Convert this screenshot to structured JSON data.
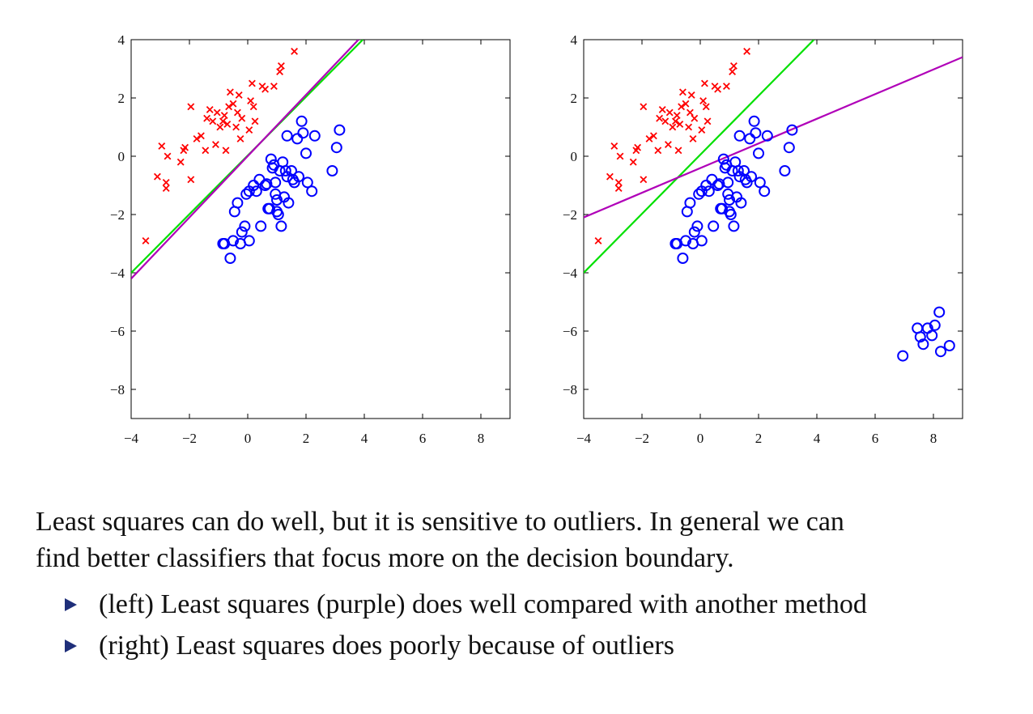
{
  "chart_data": [
    {
      "type": "scatter",
      "panel": "left",
      "xlim": [
        -4,
        9
      ],
      "ylim": [
        -9,
        4
      ],
      "xticks": [
        -4,
        -2,
        0,
        2,
        4,
        6,
        8
      ],
      "yticks": [
        -8,
        -6,
        -4,
        -2,
        0,
        2,
        4
      ],
      "xtick_labels": [
        "−4",
        "−2",
        "0",
        "2",
        "4",
        "6",
        "8"
      ],
      "ytick_labels": [
        "−8",
        "−6",
        "−4",
        "−2",
        "0",
        "2",
        "4"
      ],
      "grid": false,
      "series": [
        {
          "marker": "x",
          "color": "#ff0000",
          "points": [
            [
              -3.5,
              -2.9
            ],
            [
              -3.1,
              -0.7
            ],
            [
              -2.8,
              -0.9
            ],
            [
              -2.8,
              -1.1
            ],
            [
              -2.95,
              0.35
            ],
            [
              -2.75,
              0.0
            ],
            [
              -2.3,
              -0.2
            ],
            [
              -2.2,
              0.2
            ],
            [
              -2.15,
              0.3
            ],
            [
              -1.95,
              -0.8
            ],
            [
              -1.95,
              1.7
            ],
            [
              -1.75,
              0.6
            ],
            [
              -1.6,
              0.7
            ],
            [
              -1.45,
              0.2
            ],
            [
              -1.4,
              1.3
            ],
            [
              -1.3,
              1.6
            ],
            [
              -1.2,
              1.2
            ],
            [
              -1.1,
              0.4
            ],
            [
              -1.05,
              1.5
            ],
            [
              -0.95,
              1.0
            ],
            [
              -0.85,
              1.2
            ],
            [
              -0.8,
              1.4
            ],
            [
              -0.75,
              0.2
            ],
            [
              -0.7,
              1.1
            ],
            [
              -0.65,
              1.7
            ],
            [
              -0.6,
              2.2
            ],
            [
              -0.5,
              1.8
            ],
            [
              -0.4,
              1.0
            ],
            [
              -0.35,
              1.5
            ],
            [
              -0.3,
              2.1
            ],
            [
              -0.25,
              0.6
            ],
            [
              -0.2,
              1.3
            ],
            [
              0.05,
              0.9
            ],
            [
              0.1,
              1.9
            ],
            [
              0.15,
              2.5
            ],
            [
              0.2,
              1.7
            ],
            [
              0.25,
              1.2
            ],
            [
              0.5,
              2.4
            ],
            [
              0.6,
              2.3
            ],
            [
              0.9,
              2.4
            ],
            [
              1.1,
              2.9
            ],
            [
              1.15,
              3.1
            ],
            [
              1.6,
              3.6
            ]
          ]
        },
        {
          "marker": "o",
          "color": "#0000ff",
          "points": [
            [
              -0.85,
              -3.0
            ],
            [
              -0.8,
              -3.0
            ],
            [
              -0.6,
              -3.5
            ],
            [
              -0.5,
              -2.9
            ],
            [
              -0.45,
              -1.9
            ],
            [
              -0.35,
              -1.6
            ],
            [
              -0.25,
              -3.0
            ],
            [
              -0.2,
              -2.6
            ],
            [
              -0.1,
              -2.4
            ],
            [
              -0.05,
              -1.3
            ],
            [
              0.05,
              -1.2
            ],
            [
              0.05,
              -2.9
            ],
            [
              0.2,
              -1.0
            ],
            [
              0.3,
              -1.2
            ],
            [
              0.4,
              -0.8
            ],
            [
              0.45,
              -2.4
            ],
            [
              0.6,
              -1.0
            ],
            [
              0.7,
              -1.8
            ],
            [
              0.75,
              -1.8
            ],
            [
              0.8,
              -0.1
            ],
            [
              0.85,
              -0.4
            ],
            [
              0.95,
              -1.3
            ],
            [
              0.95,
              -0.9
            ],
            [
              1.0,
              -1.5
            ],
            [
              1.0,
              -1.9
            ],
            [
              1.05,
              -2.0
            ],
            [
              1.1,
              -0.5
            ],
            [
              1.15,
              -2.4
            ],
            [
              1.2,
              -0.2
            ],
            [
              1.25,
              -1.4
            ],
            [
              1.3,
              -0.5
            ],
            [
              1.35,
              -0.7
            ],
            [
              1.35,
              0.7
            ],
            [
              1.4,
              -1.6
            ],
            [
              1.5,
              -0.5
            ],
            [
              1.55,
              -0.8
            ],
            [
              1.6,
              -0.9
            ],
            [
              1.7,
              0.6
            ],
            [
              1.75,
              -0.7
            ],
            [
              1.85,
              1.2
            ],
            [
              1.9,
              0.8
            ],
            [
              2.0,
              0.1
            ],
            [
              2.05,
              -0.9
            ],
            [
              2.2,
              -1.2
            ],
            [
              2.3,
              0.7
            ],
            [
              2.9,
              -0.5
            ],
            [
              3.05,
              0.3
            ],
            [
              3.15,
              0.9
            ],
            [
              0.9,
              -0.3
            ],
            [
              0.65,
              -0.95
            ]
          ]
        }
      ],
      "lines": [
        {
          "color": "#00e000",
          "x": [
            -4,
            3.95
          ],
          "y": [
            -4,
            4
          ]
        },
        {
          "color": "#b000b8",
          "x": [
            -4,
            3.8
          ],
          "y": [
            -4.2,
            4
          ]
        }
      ]
    },
    {
      "type": "scatter",
      "panel": "right",
      "xlim": [
        -4,
        9
      ],
      "ylim": [
        -9,
        4
      ],
      "xticks": [
        -4,
        -2,
        0,
        2,
        4,
        6,
        8
      ],
      "yticks": [
        -8,
        -6,
        -4,
        -2,
        0,
        2,
        4
      ],
      "xtick_labels": [
        "−4",
        "−2",
        "0",
        "2",
        "4",
        "6",
        "8"
      ],
      "ytick_labels": [
        "−8",
        "−6",
        "−4",
        "−2",
        "0",
        "2",
        "4"
      ],
      "grid": false,
      "series": [
        {
          "marker": "x",
          "color": "#ff0000",
          "points": [
            [
              -3.5,
              -2.9
            ],
            [
              -3.1,
              -0.7
            ],
            [
              -2.8,
              -0.9
            ],
            [
              -2.8,
              -1.1
            ],
            [
              -2.95,
              0.35
            ],
            [
              -2.75,
              0.0
            ],
            [
              -2.3,
              -0.2
            ],
            [
              -2.2,
              0.2
            ],
            [
              -2.15,
              0.3
            ],
            [
              -1.95,
              -0.8
            ],
            [
              -1.95,
              1.7
            ],
            [
              -1.75,
              0.6
            ],
            [
              -1.6,
              0.7
            ],
            [
              -1.45,
              0.2
            ],
            [
              -1.4,
              1.3
            ],
            [
              -1.3,
              1.6
            ],
            [
              -1.2,
              1.2
            ],
            [
              -1.1,
              0.4
            ],
            [
              -1.05,
              1.5
            ],
            [
              -0.95,
              1.0
            ],
            [
              -0.85,
              1.2
            ],
            [
              -0.8,
              1.4
            ],
            [
              -0.75,
              0.2
            ],
            [
              -0.7,
              1.1
            ],
            [
              -0.65,
              1.7
            ],
            [
              -0.6,
              2.2
            ],
            [
              -0.5,
              1.8
            ],
            [
              -0.4,
              1.0
            ],
            [
              -0.35,
              1.5
            ],
            [
              -0.3,
              2.1
            ],
            [
              -0.25,
              0.6
            ],
            [
              -0.2,
              1.3
            ],
            [
              0.05,
              0.9
            ],
            [
              0.1,
              1.9
            ],
            [
              0.15,
              2.5
            ],
            [
              0.2,
              1.7
            ],
            [
              0.25,
              1.2
            ],
            [
              0.5,
              2.4
            ],
            [
              0.6,
              2.3
            ],
            [
              0.9,
              2.4
            ],
            [
              1.1,
              2.9
            ],
            [
              1.15,
              3.1
            ],
            [
              1.6,
              3.6
            ]
          ]
        },
        {
          "marker": "o",
          "color": "#0000ff",
          "points": [
            [
              -0.85,
              -3.0
            ],
            [
              -0.8,
              -3.0
            ],
            [
              -0.6,
              -3.5
            ],
            [
              -0.5,
              -2.9
            ],
            [
              -0.45,
              -1.9
            ],
            [
              -0.35,
              -1.6
            ],
            [
              -0.25,
              -3.0
            ],
            [
              -0.2,
              -2.6
            ],
            [
              -0.1,
              -2.4
            ],
            [
              -0.05,
              -1.3
            ],
            [
              0.05,
              -1.2
            ],
            [
              0.05,
              -2.9
            ],
            [
              0.2,
              -1.0
            ],
            [
              0.3,
              -1.2
            ],
            [
              0.4,
              -0.8
            ],
            [
              0.45,
              -2.4
            ],
            [
              0.6,
              -1.0
            ],
            [
              0.7,
              -1.8
            ],
            [
              0.75,
              -1.8
            ],
            [
              0.8,
              -0.1
            ],
            [
              0.85,
              -0.4
            ],
            [
              0.95,
              -1.3
            ],
            [
              0.95,
              -0.9
            ],
            [
              1.0,
              -1.5
            ],
            [
              1.0,
              -1.9
            ],
            [
              1.05,
              -2.0
            ],
            [
              1.1,
              -0.5
            ],
            [
              1.15,
              -2.4
            ],
            [
              1.2,
              -0.2
            ],
            [
              1.25,
              -1.4
            ],
            [
              1.3,
              -0.5
            ],
            [
              1.35,
              -0.7
            ],
            [
              1.35,
              0.7
            ],
            [
              1.4,
              -1.6
            ],
            [
              1.5,
              -0.5
            ],
            [
              1.55,
              -0.8
            ],
            [
              1.6,
              -0.9
            ],
            [
              1.7,
              0.6
            ],
            [
              1.75,
              -0.7
            ],
            [
              1.85,
              1.2
            ],
            [
              1.9,
              0.8
            ],
            [
              2.0,
              0.1
            ],
            [
              2.05,
              -0.9
            ],
            [
              2.2,
              -1.2
            ],
            [
              2.3,
              0.7
            ],
            [
              2.9,
              -0.5
            ],
            [
              3.05,
              0.3
            ],
            [
              3.15,
              0.9
            ],
            [
              0.9,
              -0.3
            ],
            [
              0.65,
              -0.95
            ],
            [
              6.95,
              -6.85
            ],
            [
              7.45,
              -5.9
            ],
            [
              7.55,
              -6.2
            ],
            [
              7.65,
              -6.45
            ],
            [
              7.8,
              -5.9
            ],
            [
              7.95,
              -6.15
            ],
            [
              8.05,
              -5.8
            ],
            [
              8.2,
              -5.35
            ],
            [
              8.25,
              -6.7
            ],
            [
              8.55,
              -6.5
            ]
          ]
        }
      ],
      "lines": [
        {
          "color": "#00e000",
          "x": [
            -4,
            3.9
          ],
          "y": [
            -4,
            4
          ]
        },
        {
          "color": "#b000b8",
          "x": [
            -4,
            9
          ],
          "y": [
            -2.1,
            3.4
          ]
        }
      ]
    }
  ],
  "caption": {
    "line1": "Least squares can do well, but it is sensitive to outliers. In general we can",
    "line2": "find better classifiers that focus more on the decision boundary."
  },
  "bullets": [
    "(left) Least squares (purple) does well compared with another method",
    "(right) Least squares does poorly because of outliers"
  ]
}
